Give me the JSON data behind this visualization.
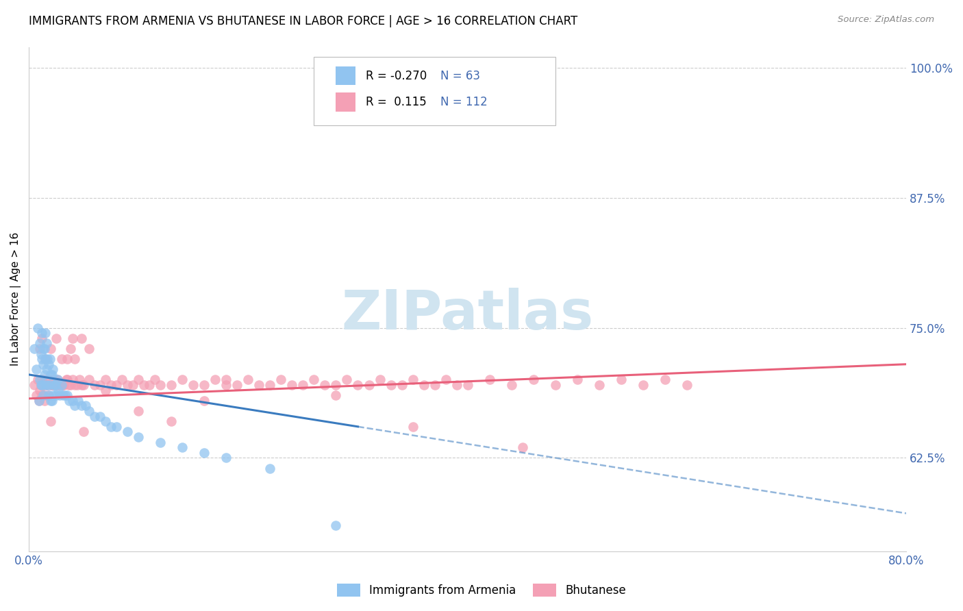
{
  "title": "IMMIGRANTS FROM ARMENIA VS BHUTANESE IN LABOR FORCE | AGE > 16 CORRELATION CHART",
  "source": "Source: ZipAtlas.com",
  "ylabel": "In Labor Force | Age > 16",
  "xlim": [
    0.0,
    0.8
  ],
  "ylim": [
    0.535,
    1.02
  ],
  "yticks": [
    0.625,
    0.75,
    0.875,
    1.0
  ],
  "ytick_labels": [
    "62.5%",
    "75.0%",
    "87.5%",
    "100.0%"
  ],
  "xticks": [
    0.0,
    0.2,
    0.4,
    0.6,
    0.8
  ],
  "xtick_labels": [
    "0.0%",
    "",
    "",
    "",
    "80.0%"
  ],
  "armenia_R": -0.27,
  "armenia_N": 63,
  "bhutanese_R": 0.115,
  "bhutanese_N": 112,
  "armenia_color": "#91c4f0",
  "bhutanese_color": "#f4a0b5",
  "armenia_line_color": "#3a7bbf",
  "bhutanese_line_color": "#e8607a",
  "watermark": "ZIPatlas",
  "watermark_color": "#d0e4f0",
  "background_color": "#ffffff",
  "grid_color": "#cccccc",
  "tick_color": "#4169b0",
  "title_fontsize": 12,
  "label_fontsize": 11,
  "armenia_scatter_x": [
    0.005,
    0.007,
    0.008,
    0.009,
    0.01,
    0.01,
    0.011,
    0.011,
    0.012,
    0.012,
    0.012,
    0.013,
    0.013,
    0.013,
    0.014,
    0.014,
    0.015,
    0.015,
    0.015,
    0.016,
    0.016,
    0.017,
    0.017,
    0.018,
    0.018,
    0.019,
    0.019,
    0.02,
    0.02,
    0.021,
    0.021,
    0.022,
    0.022,
    0.023,
    0.024,
    0.025,
    0.026,
    0.027,
    0.028,
    0.03,
    0.031,
    0.033,
    0.035,
    0.037,
    0.04,
    0.042,
    0.045,
    0.048,
    0.052,
    0.055,
    0.06,
    0.065,
    0.07,
    0.075,
    0.08,
    0.09,
    0.1,
    0.12,
    0.14,
    0.16,
    0.18,
    0.22,
    0.28
  ],
  "armenia_scatter_y": [
    0.73,
    0.71,
    0.75,
    0.68,
    0.735,
    0.7,
    0.725,
    0.695,
    0.745,
    0.72,
    0.695,
    0.73,
    0.715,
    0.685,
    0.73,
    0.705,
    0.745,
    0.72,
    0.695,
    0.735,
    0.71,
    0.72,
    0.695,
    0.715,
    0.685,
    0.72,
    0.695,
    0.705,
    0.68,
    0.705,
    0.68,
    0.71,
    0.685,
    0.695,
    0.695,
    0.685,
    0.7,
    0.69,
    0.685,
    0.695,
    0.685,
    0.685,
    0.685,
    0.68,
    0.68,
    0.675,
    0.68,
    0.675,
    0.675,
    0.67,
    0.665,
    0.665,
    0.66,
    0.655,
    0.655,
    0.65,
    0.645,
    0.64,
    0.635,
    0.63,
    0.625,
    0.615,
    0.56
  ],
  "bhutanese_scatter_x": [
    0.005,
    0.007,
    0.008,
    0.009,
    0.01,
    0.011,
    0.012,
    0.012,
    0.013,
    0.014,
    0.015,
    0.015,
    0.016,
    0.017,
    0.018,
    0.019,
    0.02,
    0.021,
    0.022,
    0.023,
    0.024,
    0.025,
    0.026,
    0.027,
    0.028,
    0.03,
    0.031,
    0.032,
    0.034,
    0.036,
    0.038,
    0.04,
    0.042,
    0.044,
    0.046,
    0.048,
    0.05,
    0.055,
    0.06,
    0.065,
    0.07,
    0.075,
    0.08,
    0.085,
    0.09,
    0.095,
    0.1,
    0.105,
    0.11,
    0.115,
    0.12,
    0.13,
    0.14,
    0.15,
    0.16,
    0.17,
    0.18,
    0.19,
    0.2,
    0.21,
    0.22,
    0.23,
    0.24,
    0.25,
    0.26,
    0.27,
    0.28,
    0.29,
    0.3,
    0.31,
    0.32,
    0.33,
    0.34,
    0.35,
    0.36,
    0.37,
    0.38,
    0.39,
    0.4,
    0.42,
    0.44,
    0.46,
    0.48,
    0.5,
    0.52,
    0.54,
    0.56,
    0.58,
    0.6,
    0.038,
    0.042,
    0.048,
    0.055,
    0.03,
    0.025,
    0.02,
    0.015,
    0.012,
    0.01,
    0.035,
    0.04,
    0.45,
    0.35,
    0.28,
    0.18,
    0.16,
    0.13,
    0.1,
    0.07,
    0.05,
    0.035,
    0.02
  ],
  "bhutanese_scatter_y": [
    0.695,
    0.685,
    0.7,
    0.68,
    0.69,
    0.695,
    0.685,
    0.7,
    0.695,
    0.68,
    0.7,
    0.685,
    0.695,
    0.695,
    0.685,
    0.7,
    0.695,
    0.695,
    0.695,
    0.7,
    0.695,
    0.695,
    0.7,
    0.695,
    0.695,
    0.695,
    0.695,
    0.695,
    0.7,
    0.695,
    0.695,
    0.7,
    0.695,
    0.695,
    0.7,
    0.695,
    0.695,
    0.7,
    0.695,
    0.695,
    0.7,
    0.695,
    0.695,
    0.7,
    0.695,
    0.695,
    0.7,
    0.695,
    0.695,
    0.7,
    0.695,
    0.695,
    0.7,
    0.695,
    0.695,
    0.7,
    0.695,
    0.695,
    0.7,
    0.695,
    0.695,
    0.7,
    0.695,
    0.695,
    0.7,
    0.695,
    0.695,
    0.7,
    0.695,
    0.695,
    0.7,
    0.695,
    0.695,
    0.7,
    0.695,
    0.695,
    0.7,
    0.695,
    0.695,
    0.7,
    0.695,
    0.7,
    0.695,
    0.7,
    0.695,
    0.7,
    0.695,
    0.7,
    0.695,
    0.73,
    0.72,
    0.74,
    0.73,
    0.72,
    0.74,
    0.73,
    0.72,
    0.74,
    0.73,
    0.72,
    0.74,
    0.635,
    0.655,
    0.685,
    0.7,
    0.68,
    0.66,
    0.67,
    0.69,
    0.65,
    0.7,
    0.66
  ]
}
